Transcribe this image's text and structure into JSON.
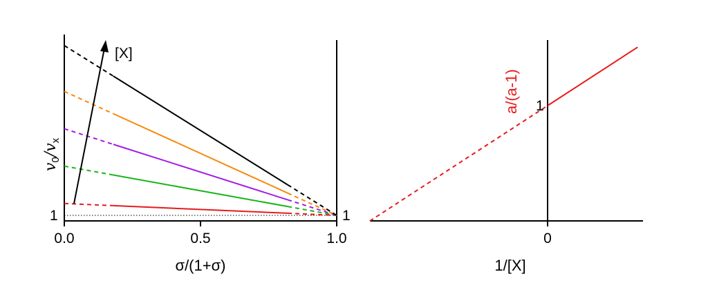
{
  "chart_data": [
    {
      "type": "line",
      "xlabel": "σ/(1+σ)",
      "ylabel": {
        "main": "v",
        "sub0": "0",
        "sep": "/v",
        "subx": "x"
      },
      "xlim": [
        0,
        1
      ],
      "ylim": [
        0.95,
        6.0
      ],
      "x_ticks": [
        "0.0",
        "0.5",
        "1.0"
      ],
      "y_tick_left": "1",
      "y_tick_right": "1",
      "arrow_label": "[X]",
      "baseline_y": 1,
      "solid_x_range": [
        0.18,
        0.82
      ],
      "series": [
        {
          "color": "#e8191a",
          "values_at_x0": 1.35
        },
        {
          "color": "#18b418",
          "values_at_x0": 2.45
        },
        {
          "color": "#a31be3",
          "values_at_x0": 3.55
        },
        {
          "color": "#f5890c",
          "values_at_x0": 4.65
        },
        {
          "color": "#000000",
          "values_at_x0": 6.0
        }
      ]
    },
    {
      "type": "line",
      "xlabel": "1/[X]",
      "x_ticks": [
        "0"
      ],
      "y_tick": "1",
      "line_label": "a/(a-1)",
      "color": "#e8191a",
      "slope": 0.65,
      "intercept": 1.0,
      "x_dashed": [
        -1.54,
        0
      ],
      "x_solid": [
        0,
        0.78
      ]
    }
  ]
}
